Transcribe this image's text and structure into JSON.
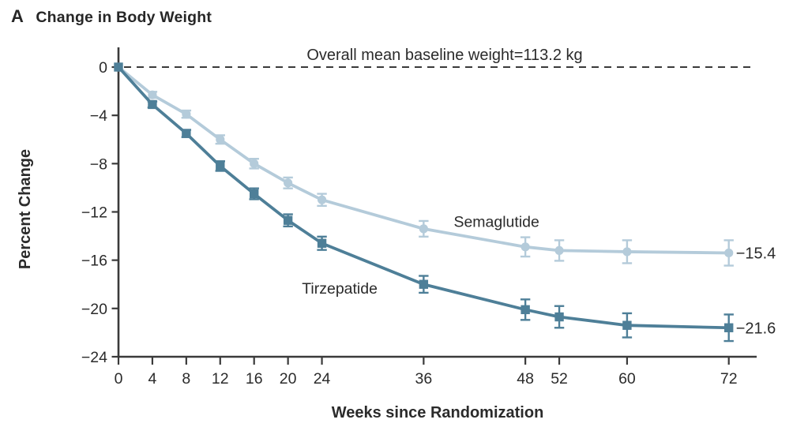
{
  "panel_label": "A",
  "title": "Change in Body Weight",
  "colors": {
    "semaglutide": "#b4cbda",
    "tirzepatide": "#4e7f98",
    "axis": "#3a3a3a",
    "text": "#2b2b2b"
  },
  "chart_data": {
    "type": "line",
    "title": "Change in Body Weight",
    "xlabel": "Weeks since Randomization",
    "ylabel": "Percent Change",
    "x": [
      0,
      4,
      8,
      12,
      16,
      20,
      24,
      36,
      48,
      52,
      60,
      72
    ],
    "xticks": [
      0,
      4,
      8,
      12,
      16,
      20,
      24,
      36,
      48,
      52,
      60,
      72
    ],
    "yticks": [
      0,
      -4,
      -8,
      -12,
      -16,
      -20,
      -24
    ],
    "ylim": [
      -24,
      0
    ],
    "xlim": [
      0,
      75.3
    ],
    "grid": false,
    "baseline": {
      "value": 0,
      "style": "dashed",
      "annotation": "Overall mean baseline weight=113.2 kg"
    },
    "series": [
      {
        "name": "Semaglutide",
        "marker": "circle",
        "color": "#b4cbda",
        "values": [
          0,
          -2.3,
          -3.9,
          -6.0,
          -8.0,
          -9.6,
          -11.0,
          -13.4,
          -14.9,
          -15.2,
          -15.3,
          -15.4
        ],
        "errors": [
          0,
          0.25,
          0.3,
          0.35,
          0.4,
          0.45,
          0.5,
          0.65,
          0.8,
          0.85,
          0.95,
          1.05
        ],
        "end_label": "−15.4",
        "label_at": {
          "week": 44.6,
          "pct": -12.8
        }
      },
      {
        "name": "Tirzepatide",
        "marker": "square",
        "color": "#4e7f98",
        "values": [
          0,
          -3.1,
          -5.5,
          -8.2,
          -10.5,
          -12.7,
          -14.6,
          -18.0,
          -20.1,
          -20.7,
          -21.4,
          -21.6
        ],
        "errors": [
          0,
          0.25,
          0.3,
          0.4,
          0.45,
          0.5,
          0.55,
          0.7,
          0.85,
          0.9,
          1.0,
          1.1
        ],
        "end_label": "−21.6",
        "label_at": {
          "week": 26.1,
          "pct": -18.3
        }
      }
    ]
  }
}
